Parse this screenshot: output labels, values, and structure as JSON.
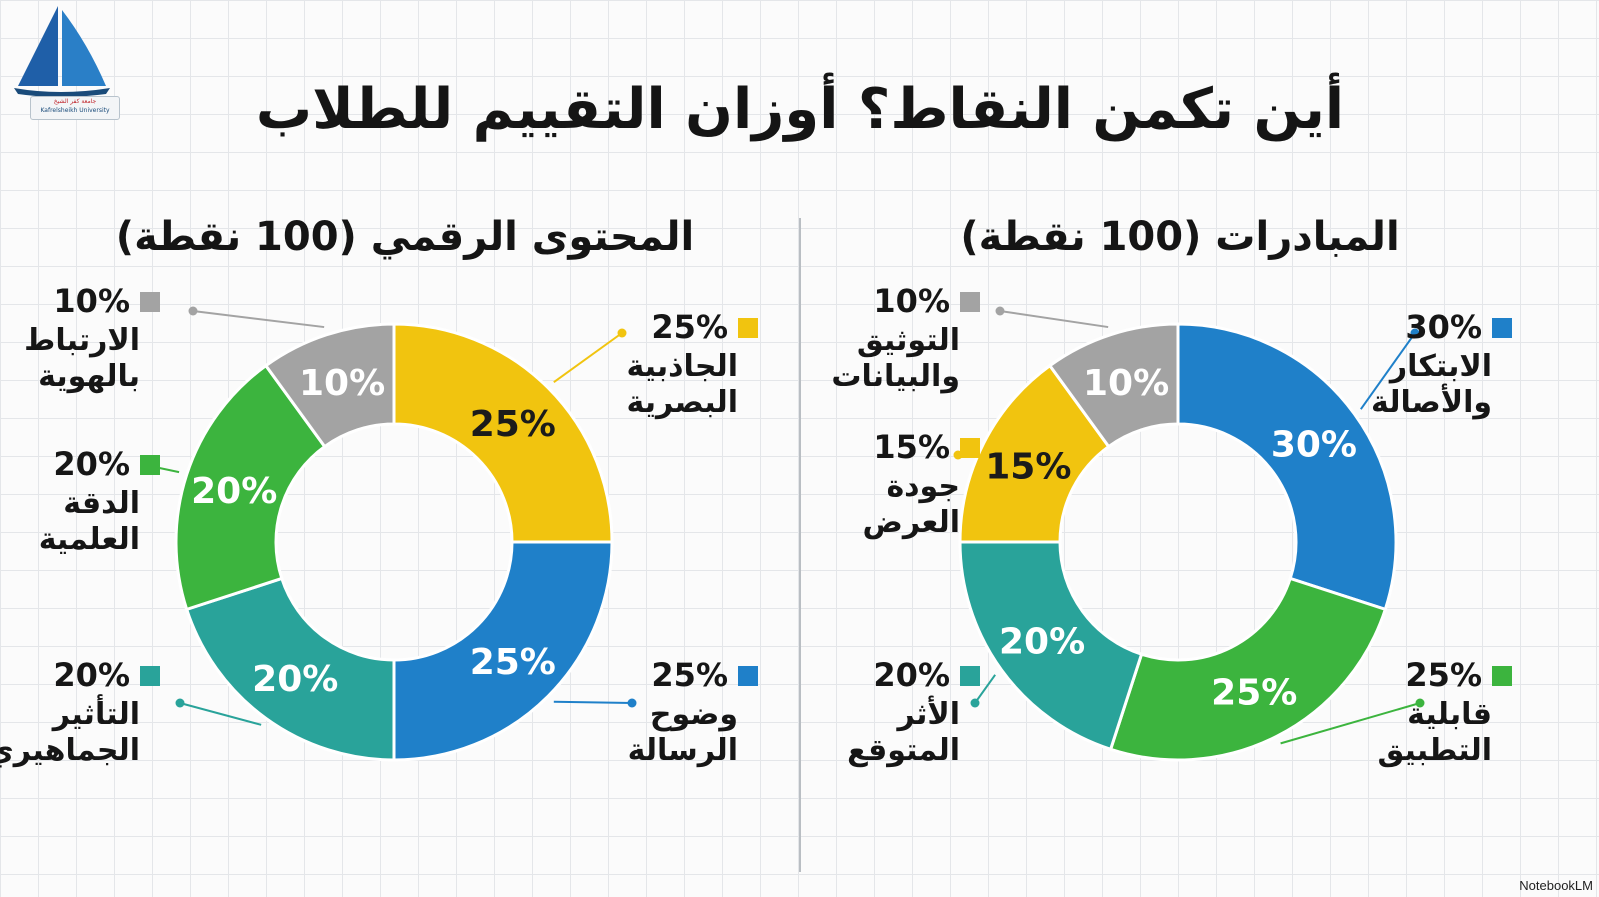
{
  "title": "أين تكمن النقاط؟ أوزان التقييم للطلاب",
  "logo": {
    "arabic": "جامعة كفر الشيخ",
    "latin": "Kafrelsheikh University"
  },
  "footer_brand": "NotebookLM",
  "colors": {
    "blue": "#1f80c9",
    "green": "#3cb43e",
    "teal": "#29a39a",
    "yellow": "#f1c40f",
    "gray": "#a3a3a3",
    "divider": "#b9bec3"
  },
  "chart_data": [
    {
      "type": "donut",
      "title": "المبادرات (100 نقطة)",
      "slices": [
        {
          "label": "الابتكار والأصالة",
          "value": 30,
          "value_label": "30%",
          "color": "#1f80c9",
          "label_lines": [
            "الابتكار",
            "والأصالة"
          ]
        },
        {
          "label": "قابلية التطبيق",
          "value": 25,
          "value_label": "25%",
          "color": "#3cb43e",
          "label_lines": [
            "قابلية",
            "التطبيق"
          ]
        },
        {
          "label": "الأثر المتوقع",
          "value": 20,
          "value_label": "20%",
          "color": "#29a39a",
          "label_lines": [
            "الأثر",
            "المتوقع"
          ]
        },
        {
          "label": "جودة العرض",
          "value": 15,
          "value_label": "15%",
          "color": "#f1c40f",
          "label_lines": [
            "جودة",
            "العرض"
          ]
        },
        {
          "label": "التوثيق والبيانات",
          "value": 10,
          "value_label": "10%",
          "color": "#a3a3a3",
          "label_lines": [
            "التوثيق",
            "والبيانات"
          ]
        }
      ]
    },
    {
      "type": "donut",
      "title": "المحتوى الرقمي (100 نقطة)",
      "slices": [
        {
          "label": "الجاذبية البصرية",
          "value": 25,
          "value_label": "25%",
          "color": "#f1c40f",
          "label_lines": [
            "الجاذبية",
            "البصرية"
          ]
        },
        {
          "label": "وضوح الرسالة",
          "value": 25,
          "value_label": "25%",
          "color": "#1f80c9",
          "label_lines": [
            "وضوح",
            "الرسالة"
          ]
        },
        {
          "label": "التأثير الجماهيري",
          "value": 20,
          "value_label": "20%",
          "color": "#29a39a",
          "label_lines": [
            "التأثير",
            "الجماهيري"
          ]
        },
        {
          "label": "الدقة العلمية",
          "value": 20,
          "value_label": "20%",
          "color": "#3cb43e",
          "label_lines": [
            "الدقة",
            "العلمية"
          ]
        },
        {
          "label": "الارتباط بالهوية",
          "value": 10,
          "value_label": "10%",
          "color": "#a3a3a3",
          "label_lines": [
            "الارتباط",
            "بالهوية"
          ]
        }
      ]
    }
  ]
}
